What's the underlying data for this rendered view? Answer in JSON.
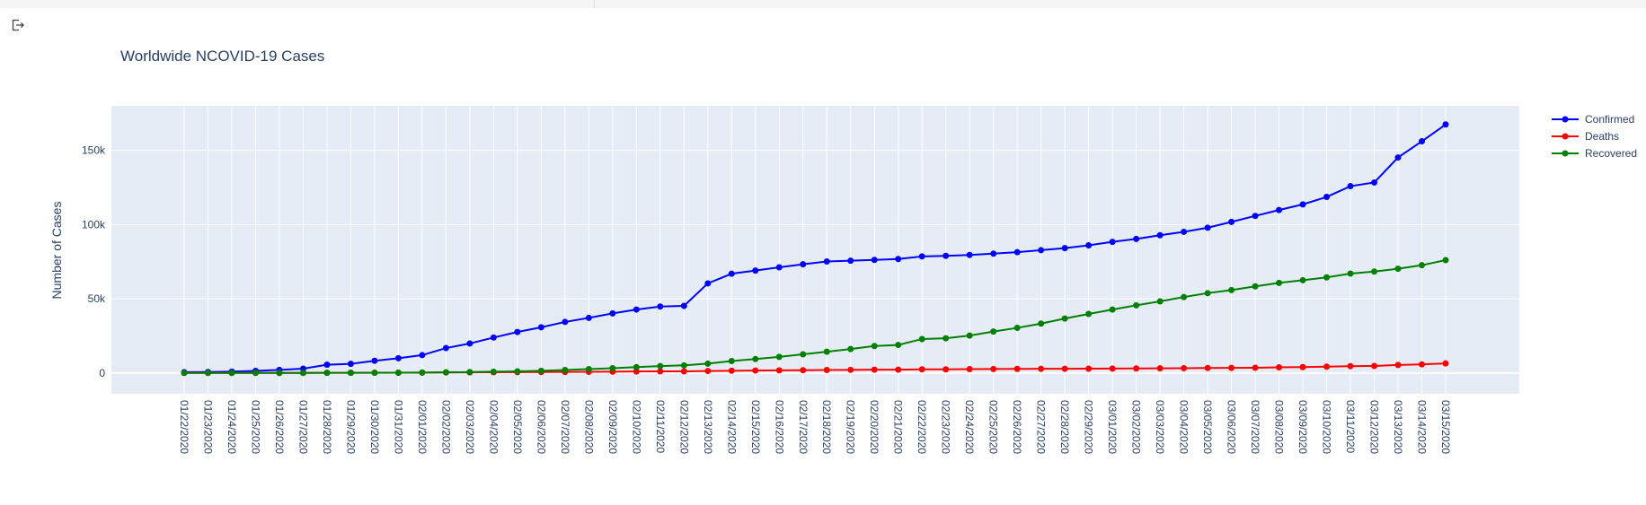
{
  "toolbar": {
    "icon": "exit-icon"
  },
  "chart_data": {
    "type": "line",
    "title": "Worldwide NCOVID-19 Cases",
    "xlabel": "",
    "ylabel": "Number of Cases",
    "ylim": [
      -14000,
      180000
    ],
    "yticks": [
      0,
      50000,
      100000,
      150000
    ],
    "ytick_labels": [
      "0",
      "50k",
      "100k",
      "150k"
    ],
    "grid": true,
    "legend": "top-right",
    "categories": [
      "01/22/2020",
      "01/23/2020",
      "01/24/2020",
      "01/25/2020",
      "01/26/2020",
      "01/27/2020",
      "01/28/2020",
      "01/29/2020",
      "01/30/2020",
      "01/31/2020",
      "02/01/2020",
      "02/02/2020",
      "02/03/2020",
      "02/04/2020",
      "02/05/2020",
      "02/06/2020",
      "02/07/2020",
      "02/08/2020",
      "02/09/2020",
      "02/10/2020",
      "02/11/2020",
      "02/12/2020",
      "02/13/2020",
      "02/14/2020",
      "02/15/2020",
      "02/16/2020",
      "02/17/2020",
      "02/18/2020",
      "02/19/2020",
      "02/20/2020",
      "02/21/2020",
      "02/22/2020",
      "02/23/2020",
      "02/24/2020",
      "02/25/2020",
      "02/26/2020",
      "02/27/2020",
      "02/28/2020",
      "02/29/2020",
      "03/01/2020",
      "03/02/2020",
      "03/03/2020",
      "03/04/2020",
      "03/05/2020",
      "03/06/2020",
      "03/07/2020",
      "03/08/2020",
      "03/09/2020",
      "03/10/2020",
      "03/11/2020",
      "03/12/2020",
      "03/13/2020",
      "03/14/2020",
      "03/15/2020"
    ],
    "series": [
      {
        "name": "Confirmed",
        "color": "#0000ff",
        "values": [
          555,
          654,
          941,
          1434,
          2118,
          2927,
          5578,
          6166,
          8234,
          9927,
          12038,
          16787,
          19881,
          23892,
          27635,
          30794,
          34391,
          37120,
          40150,
          42762,
          44802,
          45221,
          60368,
          66885,
          69030,
          71224,
          73258,
          75136,
          75639,
          76197,
          76819,
          78572,
          78958,
          79561,
          80406,
          81388,
          82746,
          84112,
          86011,
          88369,
          90306,
          92840,
          95120,
          97886,
          101801,
          105847,
          109821,
          113590,
          118620,
          125875,
          128352,
          145205,
          156101,
          167454
        ]
      },
      {
        "name": "Deaths",
        "color": "#ff0000",
        "values": [
          17,
          18,
          26,
          42,
          56,
          82,
          131,
          133,
          171,
          213,
          259,
          362,
          426,
          492,
          564,
          634,
          719,
          806,
          906,
          1013,
          1113,
          1118,
          1371,
          1523,
          1666,
          1770,
          1868,
          2007,
          2122,
          2247,
          2251,
          2458,
          2469,
          2629,
          2708,
          2770,
          2814,
          2872,
          2941,
          2996,
          3085,
          3160,
          3254,
          3348,
          3460,
          3558,
          3803,
          3996,
          4262,
          4615,
          4720,
          5404,
          5819,
          6440
        ]
      },
      {
        "name": "Recovered",
        "color": "#008000",
        "values": [
          28,
          30,
          36,
          39,
          52,
          61,
          107,
          126,
          143,
          222,
          284,
          472,
          623,
          852,
          1124,
          1487,
          2011,
          2616,
          3244,
          3946,
          4683,
          5150,
          6295,
          8058,
          9395,
          10865,
          12583,
          14352,
          16121,
          18177,
          18890,
          22886,
          23394,
          25227,
          27905,
          30384,
          33277,
          36711,
          39782,
          42716,
          45602,
          48228,
          51170,
          53796,
          55865,
          58358,
          60694,
          62494,
          64404,
          67003,
          68324,
          70251,
          72624,
          76034
        ]
      }
    ]
  }
}
